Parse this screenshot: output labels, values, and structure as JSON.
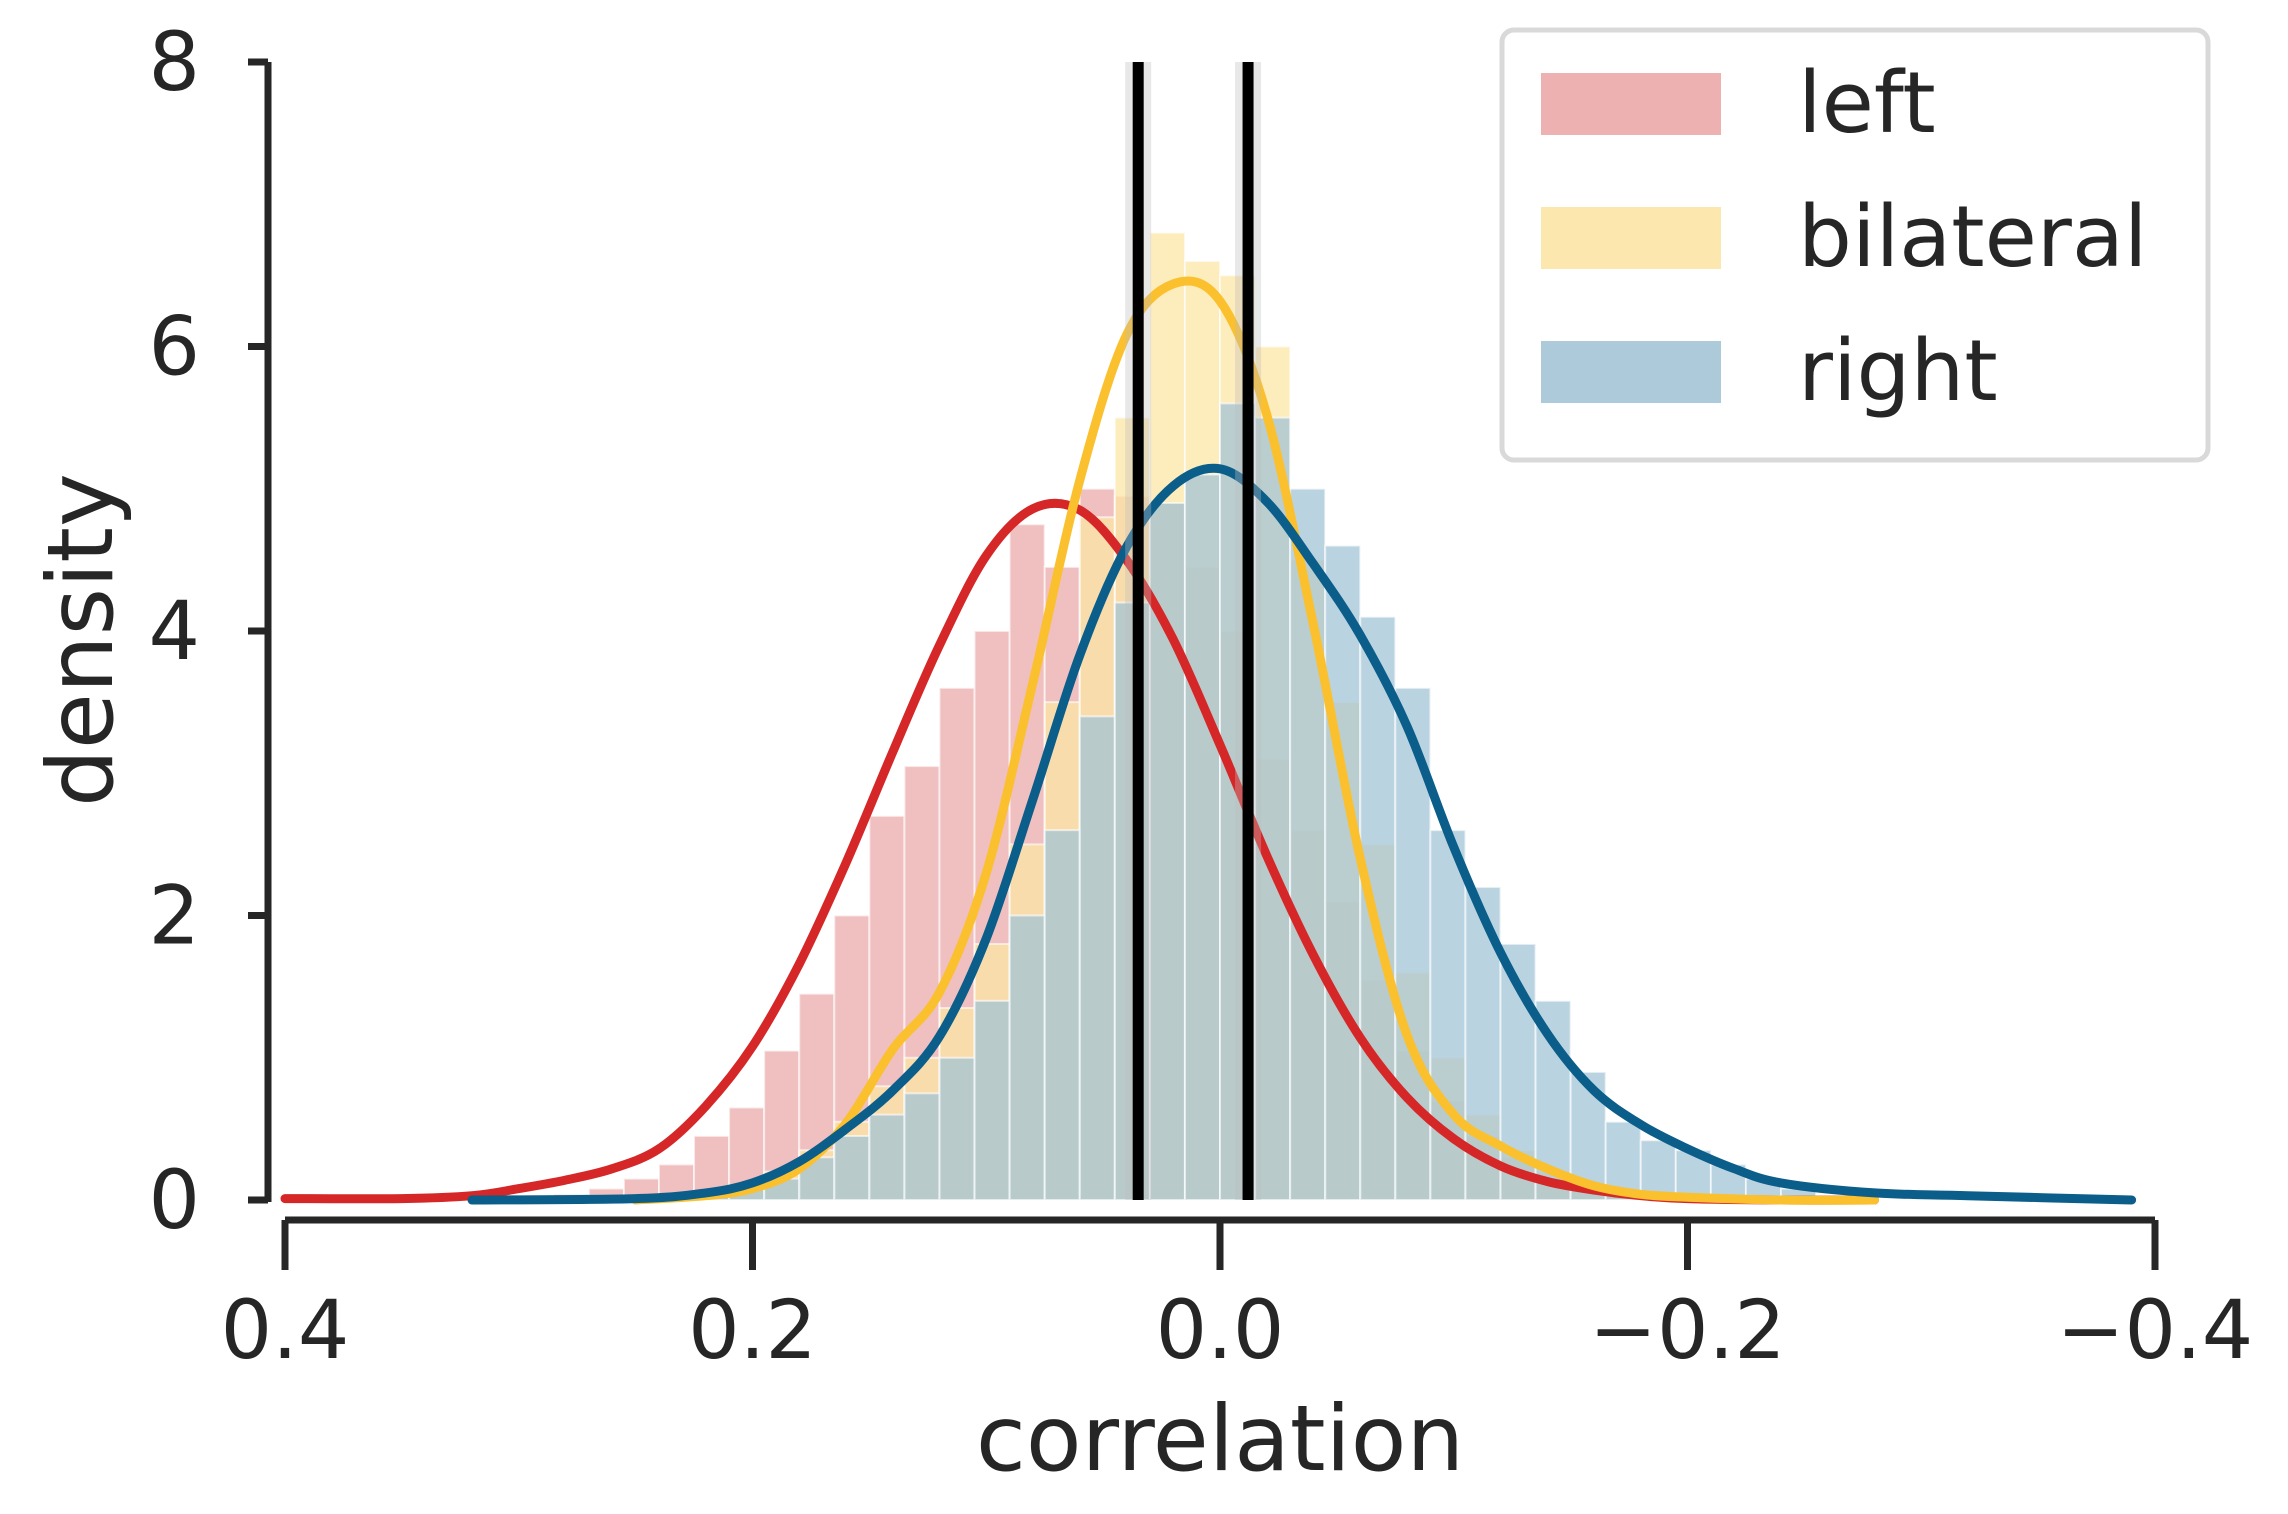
{
  "chart_data": {
    "type": "histogram",
    "xlabel": "correlation",
    "ylabel": "density",
    "x_axis_inverted": true,
    "xlim": [
      0.4,
      -0.4
    ],
    "ylim": [
      0,
      8
    ],
    "xticks": [
      0.4,
      0.2,
      0.0,
      -0.2,
      -0.4
    ],
    "xtick_labels": [
      "0.4",
      "0.2",
      "0.0",
      "−0.2",
      "−0.4"
    ],
    "yticks": [
      0,
      2,
      4,
      6,
      8
    ],
    "ytick_labels": [
      "0",
      "2",
      "4",
      "6",
      "8"
    ],
    "legend": {
      "placement": "upper right",
      "entries": [
        {
          "label": "left",
          "color": "#d62728"
        },
        {
          "label": "bilateral",
          "color": "#fbc02d"
        },
        {
          "label": "right",
          "color": "#0b5d8a"
        }
      ]
    },
    "bin_edges": [
      0.3,
      0.285,
      0.27,
      0.255,
      0.24,
      0.225,
      0.21,
      0.195,
      0.18,
      0.165,
      0.15,
      0.135,
      0.12,
      0.105,
      0.09,
      0.075,
      0.06,
      0.045,
      0.03,
      0.015,
      0.0,
      -0.015,
      -0.03,
      -0.045,
      -0.06,
      -0.075,
      -0.09,
      -0.105,
      -0.12,
      -0.135,
      -0.15,
      -0.165,
      -0.18,
      -0.195,
      -0.21,
      -0.225,
      -0.24,
      -0.255,
      -0.27
    ],
    "series": [
      {
        "name": "left",
        "color": "#d62728",
        "bar_color": "#eba9a9",
        "hist": [
          0.02,
          0.04,
          0.08,
          0.15,
          0.25,
          0.45,
          0.65,
          1.05,
          1.45,
          2.0,
          2.7,
          3.05,
          3.6,
          4.0,
          4.75,
          4.45,
          5.0,
          4.95,
          4.9,
          4.45,
          4.0,
          3.1,
          2.6,
          2.1,
          1.55,
          1.05,
          0.7,
          0.45,
          0.3,
          0.15,
          0.08,
          0.04,
          0.02,
          0.01,
          0,
          0,
          0,
          0
        ],
        "kde_x": [
          0.4,
          0.35,
          0.32,
          0.3,
          0.28,
          0.26,
          0.24,
          0.22,
          0.2,
          0.18,
          0.16,
          0.14,
          0.12,
          0.1,
          0.08,
          0.06,
          0.04,
          0.02,
          0.0,
          -0.02,
          -0.04,
          -0.06,
          -0.08,
          -0.1,
          -0.12,
          -0.14,
          -0.16,
          -0.18,
          -0.2,
          -0.24,
          -0.28
        ],
        "kde_y": [
          0.01,
          0.01,
          0.03,
          0.08,
          0.14,
          0.22,
          0.36,
          0.66,
          1.08,
          1.66,
          2.37,
          3.15,
          3.9,
          4.53,
          4.86,
          4.85,
          4.5,
          3.94,
          3.2,
          2.42,
          1.72,
          1.14,
          0.72,
          0.43,
          0.24,
          0.13,
          0.07,
          0.03,
          0.01,
          0.0,
          0.0
        ]
      },
      {
        "name": "bilateral",
        "color": "#fbc02d",
        "bar_color": "#fce5a5",
        "hist": [
          0,
          0,
          0,
          0,
          0.02,
          0.05,
          0.1,
          0.2,
          0.35,
          0.55,
          0.8,
          1.0,
          1.35,
          1.8,
          2.5,
          3.5,
          4.8,
          5.5,
          6.8,
          6.6,
          6.5,
          6.0,
          4.5,
          3.5,
          2.5,
          1.6,
          1.0,
          0.6,
          0.35,
          0.2,
          0.1,
          0.05,
          0.02,
          0.01,
          0,
          0,
          0,
          0
        ],
        "kde_x": [
          0.25,
          0.22,
          0.2,
          0.18,
          0.16,
          0.14,
          0.12,
          0.1,
          0.08,
          0.06,
          0.04,
          0.02,
          0.0,
          -0.02,
          -0.04,
          -0.06,
          -0.08,
          -0.1,
          -0.12,
          -0.14,
          -0.16,
          -0.18,
          -0.2,
          -0.24,
          -0.28
        ],
        "kde_y": [
          0.0,
          0.03,
          0.08,
          0.22,
          0.54,
          1.06,
          1.46,
          2.3,
          3.64,
          5.06,
          6.08,
          6.44,
          6.32,
          5.52,
          4.04,
          2.4,
          1.16,
          0.6,
          0.38,
          0.22,
          0.1,
          0.04,
          0.02,
          0.0,
          0.0
        ]
      },
      {
        "name": "right",
        "color": "#0b5d8a",
        "bar_color": "#a3c4d6",
        "hist": [
          0,
          0,
          0,
          0,
          0.02,
          0.04,
          0.08,
          0.15,
          0.3,
          0.45,
          0.6,
          0.75,
          1.0,
          1.4,
          2.0,
          2.6,
          3.4,
          4.2,
          4.9,
          5.1,
          5.6,
          5.5,
          5.0,
          4.6,
          4.1,
          3.6,
          2.6,
          2.2,
          1.8,
          1.4,
          0.9,
          0.55,
          0.42,
          0.35,
          0.25,
          0.15,
          0.08,
          0.03
        ],
        "kde_x": [
          0.32,
          0.25,
          0.22,
          0.2,
          0.18,
          0.16,
          0.14,
          0.12,
          0.1,
          0.08,
          0.06,
          0.04,
          0.02,
          0.0,
          -0.02,
          -0.04,
          -0.06,
          -0.08,
          -0.1,
          -0.12,
          -0.14,
          -0.16,
          -0.18,
          -0.2,
          -0.22,
          -0.24,
          -0.28,
          -0.32,
          -0.39
        ],
        "kde_y": [
          0.0,
          0.01,
          0.05,
          0.12,
          0.27,
          0.5,
          0.77,
          1.15,
          1.84,
          2.82,
          3.83,
          4.59,
          5.02,
          5.14,
          4.91,
          4.47,
          3.97,
          3.33,
          2.48,
          1.74,
          1.17,
          0.77,
          0.53,
          0.36,
          0.22,
          0.12,
          0.05,
          0.03,
          0.0
        ]
      }
    ],
    "vertical_lines": [
      {
        "x": 0.035,
        "color": "#000000"
      },
      {
        "x": -0.012,
        "color": "#000000"
      }
    ]
  }
}
